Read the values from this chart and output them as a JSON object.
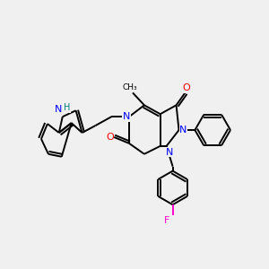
{
  "bg_color": "#f0f0f0",
  "atom_colors": {
    "N": "#0000ff",
    "O": "#ff0000",
    "F": "#ff00cc",
    "H_indole": "#008080",
    "C": "#000000"
  },
  "figsize": [
    3.0,
    3.0
  ],
  "dpi": 100
}
